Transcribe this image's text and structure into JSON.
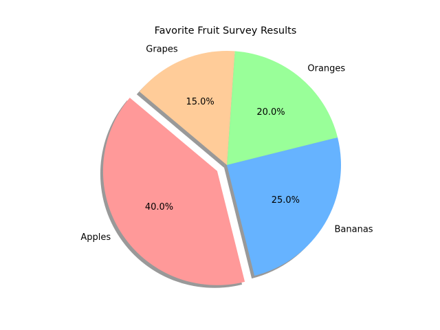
{
  "chart_data": {
    "type": "pie",
    "title": "Favorite Fruit Survey Results",
    "categories": [
      "Apples",
      "Bananas",
      "Oranges",
      "Grapes"
    ],
    "values": [
      40,
      25,
      20,
      15
    ],
    "percent_labels": [
      "40.0%",
      "25.0%",
      "20.0%",
      "15.0%"
    ],
    "colors": [
      "#ff9999",
      "#66b3ff",
      "#99ff99",
      "#ffcc99"
    ],
    "explode": [
      0.1,
      0,
      0,
      0
    ],
    "start_angle_deg": 140,
    "shadow": true,
    "legend": "none"
  }
}
